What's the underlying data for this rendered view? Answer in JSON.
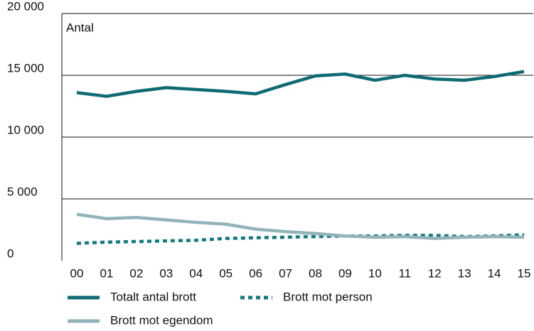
{
  "chart_data": {
    "type": "line",
    "y_label": "Antal",
    "categories": [
      "00",
      "01",
      "02",
      "03",
      "04",
      "05",
      "06",
      "07",
      "08",
      "09",
      "10",
      "11",
      "12",
      "13",
      "14",
      "15"
    ],
    "series": [
      {
        "name": "Totalt antal brott",
        "color": "#0f6b73",
        "style": "solid",
        "values": [
          13600,
          13300,
          13700,
          14000,
          13850,
          13700,
          13500,
          14250,
          14950,
          15100,
          14600,
          15000,
          14700,
          14600,
          14900,
          15300
        ]
      },
      {
        "name": "Brott mot person",
        "color": "#137a80",
        "style": "dotted",
        "values": [
          1400,
          1500,
          1550,
          1600,
          1650,
          1800,
          1850,
          1900,
          1950,
          2000,
          2000,
          2050,
          2050,
          1950,
          2000,
          2100
        ]
      },
      {
        "name": "Brott mot egendom",
        "color": "#93b3bb",
        "style": "solid",
        "values": [
          3750,
          3400,
          3500,
          3300,
          3100,
          2950,
          2550,
          2350,
          2200,
          2000,
          1900,
          1950,
          1800,
          1900,
          1950,
          1900
        ]
      }
    ],
    "ylim": [
      0,
      20000
    ],
    "yticks": [
      0,
      {
        "value": 5000,
        "label": "5 000"
      },
      {
        "value": 10000,
        "label": "10 000"
      },
      {
        "value": 15000,
        "label": "15 000"
      },
      {
        "value": 20000,
        "label": "20 000"
      }
    ],
    "grid": true
  }
}
